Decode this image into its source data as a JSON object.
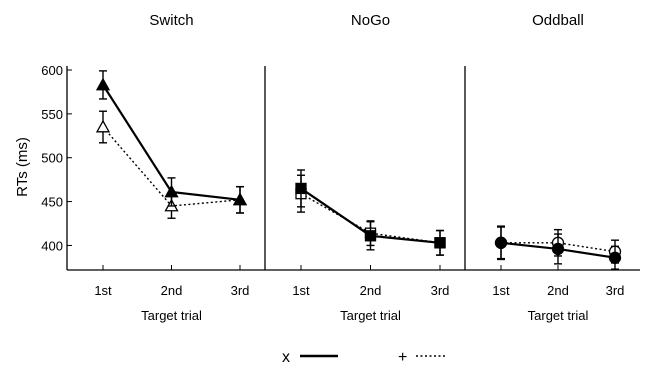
{
  "chart_data": {
    "type": "line",
    "ylabel": "RTs (ms)",
    "ylim": [
      372,
      600
    ],
    "yticks": [
      400,
      450,
      500,
      550,
      600
    ],
    "grid": false,
    "legend_position": "bottom-center",
    "legend": [
      {
        "label": "x",
        "style": "solid"
      },
      {
        "label": "+",
        "style": "dotted"
      }
    ],
    "panels": [
      {
        "title": "Switch",
        "xlabel": "Target trial",
        "categories": [
          "1st",
          "2nd",
          "3rd"
        ],
        "marker": "triangle",
        "series": [
          {
            "style": "solid",
            "filled": true,
            "values": [
              583,
              461,
              452
            ],
            "errors": [
              16,
              16,
              15
            ]
          },
          {
            "style": "dotted",
            "filled": false,
            "values": [
              535,
              445,
              452
            ],
            "errors": [
              18,
              14,
              15
            ]
          }
        ]
      },
      {
        "title": "NoGo",
        "xlabel": "Target trial",
        "categories": [
          "1st",
          "2nd",
          "3rd"
        ],
        "marker": "square",
        "series": [
          {
            "style": "solid",
            "filled": true,
            "values": [
              465,
              411,
              403
            ],
            "errors": [
              21,
              16,
              14
            ]
          },
          {
            "style": "dotted",
            "filled": false,
            "values": [
              459,
              414,
              403
            ],
            "errors": [
              21,
              14,
              14
            ]
          }
        ]
      },
      {
        "title": "Oddball",
        "xlabel": "Target trial",
        "categories": [
          "1st",
          "2nd",
          "3rd"
        ],
        "marker": "circle",
        "series": [
          {
            "style": "solid",
            "filled": true,
            "values": [
              403,
              396,
              386
            ],
            "errors": [
              19,
              17,
              13
            ]
          },
          {
            "style": "dotted",
            "filled": false,
            "values": [
              403,
              403,
              393
            ],
            "errors": [
              18,
              15,
              13
            ]
          }
        ]
      }
    ]
  }
}
